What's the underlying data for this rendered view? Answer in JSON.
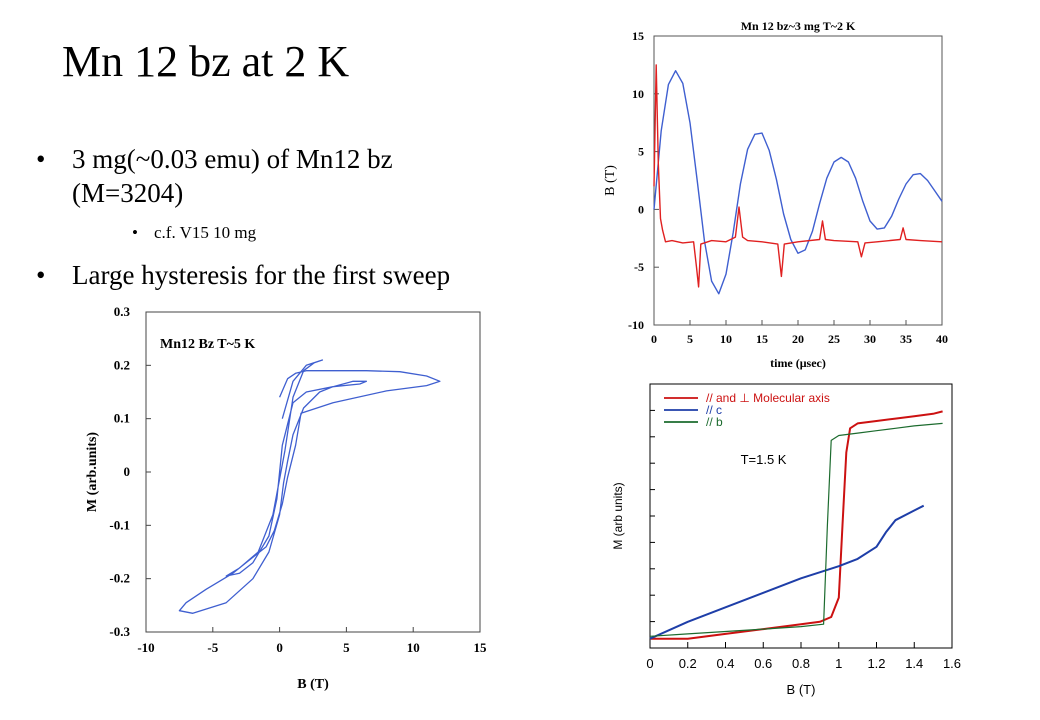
{
  "slide": {
    "title": "Mn 12 bz at 2 K",
    "bullets": [
      {
        "text": "3 mg(~0.03 emu) of Mn12 bz (M=3204)",
        "line1": "3 mg(~0.03 emu) of Mn12 bz",
        "line2": "(M=3204)"
      },
      {
        "text": "c.f. V15 10 mg",
        "level": 2
      },
      {
        "text": "Large hysteresis for the first sweep"
      }
    ]
  },
  "chart_data": [
    {
      "type": "line",
      "title": "Mn 12 bz~3 mg T~2 K",
      "xlabel": "time (μsec)",
      "ylabel": "B (T)",
      "xlim": [
        0,
        40
      ],
      "ylim": [
        -10,
        15
      ],
      "xticks": [
        "0",
        "5",
        "10",
        "15",
        "20",
        "25",
        "30",
        "35",
        "40"
      ],
      "yticks": [
        "-10",
        "-5",
        "0",
        "5",
        "10",
        "15"
      ],
      "series": [
        {
          "color": "#3f5fd0",
          "x": [
            0,
            1,
            2,
            3,
            4,
            5,
            6,
            7,
            8,
            9,
            10,
            11,
            12,
            13,
            14,
            15,
            16,
            17,
            18,
            19,
            20,
            21,
            22,
            23,
            24,
            25,
            26,
            27,
            28,
            29,
            30,
            31,
            32,
            33,
            34,
            35,
            36,
            37,
            38,
            39,
            40
          ],
          "y": [
            0,
            6.8,
            10.8,
            12.0,
            10.9,
            7.5,
            2.5,
            -2.7,
            -6.2,
            -7.3,
            -5.6,
            -2.0,
            2.2,
            5.2,
            6.5,
            6.6,
            5.1,
            2.6,
            -0.4,
            -2.6,
            -3.8,
            -3.5,
            -1.9,
            0.5,
            2.7,
            4.1,
            4.5,
            4.1,
            2.7,
            0.7,
            -1.0,
            -1.7,
            -1.6,
            -0.6,
            0.9,
            2.2,
            3.0,
            3.1,
            2.5,
            1.6,
            0.7
          ]
        },
        {
          "color": "#e02020",
          "x": [
            0,
            0.3,
            0.6,
            0.9,
            1.2,
            1.6,
            2.5,
            4,
            5.5,
            5.9,
            6.2,
            6.5,
            8,
            10,
            11.3,
            11.8,
            12.3,
            13,
            15,
            17.2,
            17.7,
            18.1,
            20,
            23,
            23.4,
            23.8,
            25,
            28.3,
            28.8,
            29.3,
            31,
            34.2,
            34.6,
            35.0,
            37,
            40
          ],
          "y": [
            2.0,
            12.5,
            4.0,
            -0.8,
            -1.8,
            -2.8,
            -2.7,
            -2.9,
            -2.8,
            -5.0,
            -6.7,
            -3.0,
            -2.7,
            -2.8,
            -2.4,
            0.2,
            -2.4,
            -2.7,
            -2.8,
            -3.0,
            -5.8,
            -3.0,
            -2.8,
            -2.6,
            -1.0,
            -2.6,
            -2.7,
            -2.8,
            -4.1,
            -2.9,
            -2.8,
            -2.6,
            -1.6,
            -2.6,
            -2.7,
            -2.8
          ]
        }
      ]
    },
    {
      "type": "line",
      "title": "Mn12 Bz T~5 K",
      "xlabel": "B (T)",
      "ylabel": "M (arb.units)",
      "xlim": [
        -10,
        15
      ],
      "ylim": [
        -0.3,
        0.3
      ],
      "xticks": [
        "-10",
        "-5",
        "0",
        "5",
        "10",
        "15"
      ],
      "yticks": [
        "-0.3",
        "-0.2",
        "-0.1",
        "0",
        "0.1",
        "0.2",
        "0.3"
      ],
      "series": [
        {
          "color": "#3f5fd0",
          "x": [
            0,
            0.6,
            1.2,
            2.0,
            3.0,
            4.5,
            6.5,
            9.0,
            11.0,
            12.0,
            11.0,
            8.0,
            4.0,
            1.6,
            1.2,
            0.9,
            0.6,
            0.2,
            -0.4,
            -1.0,
            -2.0,
            -3.5,
            -5.5,
            -7.0,
            -7.5,
            -6.5,
            -4.0,
            -2.0,
            -0.8,
            0,
            0.3,
            0.6,
            1.0,
            1.8,
            3.0,
            4.0,
            5.5,
            6.5,
            6.0,
            4.0,
            2.0,
            1.0,
            0.2,
            -0.2,
            -0.8,
            -2.0,
            -3.0,
            -4.0,
            -3.0,
            -1.6,
            -0.5,
            0.4,
            1.0,
            1.8,
            2.6,
            3.2,
            2.0,
            1.0,
            0.2
          ],
          "y": [
            0.14,
            0.175,
            0.185,
            0.19,
            0.19,
            0.19,
            0.19,
            0.188,
            0.18,
            0.17,
            0.162,
            0.152,
            0.13,
            0.11,
            0.05,
            0.02,
            -0.01,
            -0.06,
            -0.11,
            -0.14,
            -0.16,
            -0.19,
            -0.22,
            -0.245,
            -0.26,
            -0.265,
            -0.245,
            -0.2,
            -0.15,
            -0.08,
            -0.02,
            0.02,
            0.07,
            0.12,
            0.15,
            0.16,
            0.17,
            0.17,
            0.165,
            0.16,
            0.15,
            0.13,
            0.05,
            -0.05,
            -0.12,
            -0.17,
            -0.19,
            -0.195,
            -0.18,
            -0.15,
            -0.08,
            0.04,
            0.14,
            0.19,
            0.205,
            0.21,
            0.2,
            0.17,
            0.1
          ]
        }
      ]
    },
    {
      "type": "line",
      "xlabel": "B (T)",
      "ylabel": "M (arb units)",
      "xlim": [
        0,
        1.6
      ],
      "xticks": [
        "0",
        "0.2",
        "0.4",
        "0.6",
        "0.8",
        "1",
        "1.2",
        "1.4",
        "1.6"
      ],
      "annotation": "T=1.5 K",
      "legend_position": "top-left",
      "series": [
        {
          "name": "// and  ⊥  Molecular axis",
          "color": "#cc1111",
          "x": [
            0,
            0.2,
            0.4,
            0.6,
            0.8,
            0.9,
            0.96,
            1.0,
            1.02,
            1.04,
            1.06,
            1.1,
            1.2,
            1.3,
            1.4,
            1.5,
            1.55
          ],
          "y": [
            0.03,
            0.03,
            0.05,
            0.07,
            0.09,
            0.1,
            0.12,
            0.2,
            0.5,
            0.8,
            0.9,
            0.92,
            0.93,
            0.94,
            0.95,
            0.96,
            0.97
          ]
        },
        {
          "name": "// c",
          "color": "#1e3ea8",
          "x": [
            0,
            0.2,
            0.4,
            0.6,
            0.8,
            1.0,
            1.1,
            1.2,
            1.25,
            1.3,
            1.4,
            1.45
          ],
          "y": [
            0.03,
            0.1,
            0.16,
            0.22,
            0.28,
            0.33,
            0.36,
            0.41,
            0.47,
            0.52,
            0.56,
            0.58
          ]
        },
        {
          "name": "// b",
          "color": "#1c6b2e",
          "x": [
            0,
            0.2,
            0.4,
            0.6,
            0.8,
            0.92,
            0.94,
            0.96,
            1.0,
            1.1,
            1.2,
            1.3,
            1.4,
            1.55
          ],
          "y": [
            0.04,
            0.05,
            0.06,
            0.07,
            0.08,
            0.09,
            0.5,
            0.85,
            0.87,
            0.88,
            0.89,
            0.9,
            0.91,
            0.92
          ]
        }
      ]
    }
  ]
}
